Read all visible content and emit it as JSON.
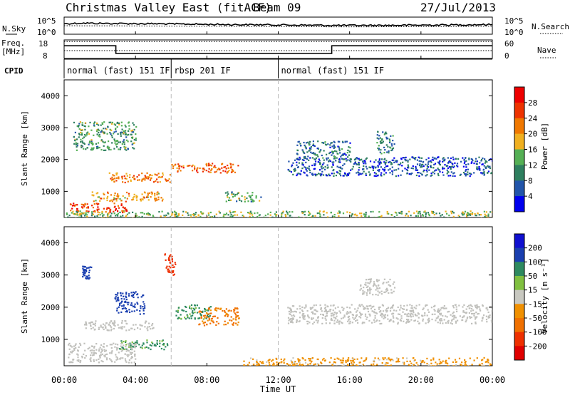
{
  "header": {
    "title": "Christmas Valley East (fitACF)",
    "beam": "Beam 09",
    "date": "27/Jul/2013"
  },
  "top_panels": {
    "nsky": {
      "label": "N.Sky",
      "ytick_top": "10^5",
      "ytick_bottom": "10^0",
      "right_label": "N.Search",
      "right_tick_top": "10^5",
      "right_tick_bottom": "10^0"
    },
    "freq": {
      "label_line1": "Freq.",
      "label_line2": "[MHz]",
      "tick_top": "18",
      "tick_bottom": "8",
      "right_label": "Nave",
      "right_tick_top": "60",
      "right_tick_bottom": "0"
    },
    "cpid": {
      "label": "CPID",
      "segments": [
        "normal (fast) 151 IF",
        "rbsp 201 IF",
        "normal (fast) 151 IF"
      ]
    }
  },
  "panels": {
    "power": {
      "ylabel": "Slant Range [km]",
      "yticks": [
        "4000",
        "3000",
        "2000",
        "1000"
      ],
      "colorbar_label": "Power [dB]",
      "colorbar_ticks": [
        "28",
        "24",
        "20",
        "16",
        "12",
        "8",
        "4"
      ]
    },
    "velocity": {
      "ylabel": "Slant Range [km]",
      "yticks": [
        "4000",
        "3000",
        "2000",
        "1000"
      ],
      "colorbar_label": "Velocity [m s⁻¹]",
      "colorbar_ticks": [
        "200",
        "100",
        "50",
        "15",
        "-15",
        "-50",
        "-100",
        "-200"
      ]
    }
  },
  "xaxis": {
    "ticks": [
      "00:00",
      "04:00",
      "08:00",
      "12:00",
      "16:00",
      "20:00",
      "00:00"
    ],
    "label": "Time UT"
  },
  "colors": {
    "power_scale": [
      "#0000ee",
      "#2255aa",
      "#2e7f5f",
      "#55b055",
      "#f0b020",
      "#f07800",
      "#ee3300",
      "#ee0000"
    ],
    "velocity_scale": [
      "#e00000",
      "#ee3000",
      "#f07000",
      "#f09000",
      "#c8c8c0",
      "#80c040",
      "#2e8a60",
      "#1a3fb0",
      "#1010d0"
    ],
    "ground_scatter": "#c0c0bc"
  },
  "chart_data": [
    {
      "type": "line",
      "title": "N.Sky / N.Search",
      "x_unit": "hours UT",
      "xlim": [
        0,
        24
      ],
      "y_scale": "log",
      "ylim": [
        1,
        100000
      ],
      "series": [
        {
          "name": "N.Sky",
          "x": [
            0,
            1,
            2,
            3,
            4,
            5,
            6,
            7,
            8,
            9,
            10,
            11,
            12,
            13,
            14,
            15,
            16,
            17,
            18,
            19,
            20,
            21,
            22,
            23,
            24
          ],
          "y": [
            1500,
            2500,
            2000,
            1800,
            1600,
            1500,
            1200,
            1100,
            900,
            800,
            700,
            650,
            600,
            500,
            450,
            400,
            380,
            400,
            420,
            450,
            500,
            550,
            600,
            700,
            800
          ]
        },
        {
          "name": "N.Search",
          "x": [
            0,
            4,
            8,
            12,
            16,
            20,
            24
          ],
          "y": [
            300,
            250,
            200,
            150,
            120,
            150,
            200
          ]
        }
      ]
    },
    {
      "type": "line",
      "title": "Freq. / Nave",
      "x_unit": "hours UT",
      "xlim": [
        0,
        24
      ],
      "ylim": [
        8,
        18
      ],
      "series": [
        {
          "name": "Freq.",
          "x": [
            0,
            2.9,
            2.9,
            15.0,
            15.0,
            24
          ],
          "y": [
            15,
            15,
            10.5,
            10.5,
            15,
            15
          ]
        },
        {
          "name": "Nave",
          "x": [
            0,
            24
          ],
          "y": [
            17.5,
            17.5
          ]
        }
      ]
    },
    {
      "type": "table",
      "title": "CPID",
      "columns": [
        "start_ut",
        "end_ut",
        "mode"
      ],
      "rows": [
        [
          0,
          6.0,
          "normal (fast) 151 IF"
        ],
        [
          6.0,
          12.0,
          "rbsp 201 IF"
        ],
        [
          12.0,
          24.0,
          "normal (fast) 151 IF"
        ]
      ]
    },
    {
      "type": "heatmap",
      "title": "Power [dB]",
      "x_unit": "hours UT",
      "xlim": [
        0,
        24
      ],
      "ylabel": "Slant Range [km]",
      "ylim": [
        180,
        4500
      ],
      "clim": [
        0,
        32
      ],
      "regions": [
        {
          "x": [
            0.3,
            3.5
          ],
          "y": [
            350,
            650
          ],
          "power": 26
        },
        {
          "x": [
            1.5,
            5.5
          ],
          "y": [
            700,
            1000
          ],
          "power": 20
        },
        {
          "x": [
            2.5,
            6.0
          ],
          "y": [
            1300,
            1600
          ],
          "power": 22
        },
        {
          "x": [
            0.5,
            4.0
          ],
          "y": [
            2300,
            3200
          ],
          "power": 12
        },
        {
          "x": [
            6.0,
            9.8
          ],
          "y": [
            1600,
            1900
          ],
          "power": 24
        },
        {
          "x": [
            9.0,
            11.0
          ],
          "y": [
            700,
            1000
          ],
          "power": 12
        },
        {
          "x": [
            12.5,
            24.0
          ],
          "y": [
            1500,
            2100
          ],
          "power": 6
        },
        {
          "x": [
            13.0,
            16.0
          ],
          "y": [
            2000,
            2600
          ],
          "power": 8
        },
        {
          "x": [
            17.5,
            18.5
          ],
          "y": [
            2200,
            2900
          ],
          "power": 10
        },
        {
          "x": [
            0,
            24
          ],
          "y": [
            180,
            400
          ],
          "power": 14
        }
      ]
    },
    {
      "type": "heatmap",
      "title": "Velocity [m s⁻¹]",
      "x_unit": "hours UT",
      "xlim": [
        0,
        24
      ],
      "ylabel": "Slant Range [km]",
      "ylim": [
        180,
        4500
      ],
      "clim": [
        -200,
        200
      ],
      "regions": [
        {
          "x": [
            6.2,
            8.2
          ],
          "y": [
            1650,
            2100
          ],
          "velocity": 60,
          "ground_scatter": false
        },
        {
          "x": [
            7.5,
            9.8
          ],
          "y": [
            1450,
            2000
          ],
          "velocity": -60,
          "ground_scatter": false
        },
        {
          "x": [
            3.0,
            5.8
          ],
          "y": [
            700,
            1000
          ],
          "velocity": 60,
          "ground_scatter": false
        },
        {
          "x": [
            2.8,
            4.5
          ],
          "y": [
            1800,
            2500
          ],
          "velocity": 150,
          "ground_scatter": false
        },
        {
          "x": [
            1.0,
            1.5
          ],
          "y": [
            2900,
            3300
          ],
          "velocity": 150,
          "ground_scatter": false
        },
        {
          "x": [
            5.6,
            6.2
          ],
          "y": [
            3000,
            3700
          ],
          "velocity": -150,
          "ground_scatter": false
        },
        {
          "x": [
            10.0,
            24.0
          ],
          "y": [
            180,
            450
          ],
          "velocity": -30,
          "ground_scatter": false
        },
        {
          "x": [
            0.2,
            4.0
          ],
          "y": [
            300,
            900
          ],
          "velocity": 0,
          "ground_scatter": true
        },
        {
          "x": [
            1.0,
            5.0
          ],
          "y": [
            1300,
            1600
          ],
          "velocity": 0,
          "ground_scatter": true
        },
        {
          "x": [
            12.5,
            24.0
          ],
          "y": [
            1500,
            2100
          ],
          "velocity": 0,
          "ground_scatter": true
        },
        {
          "x": [
            16.5,
            18.5
          ],
          "y": [
            2400,
            2900
          ],
          "velocity": 0,
          "ground_scatter": true
        }
      ]
    }
  ]
}
